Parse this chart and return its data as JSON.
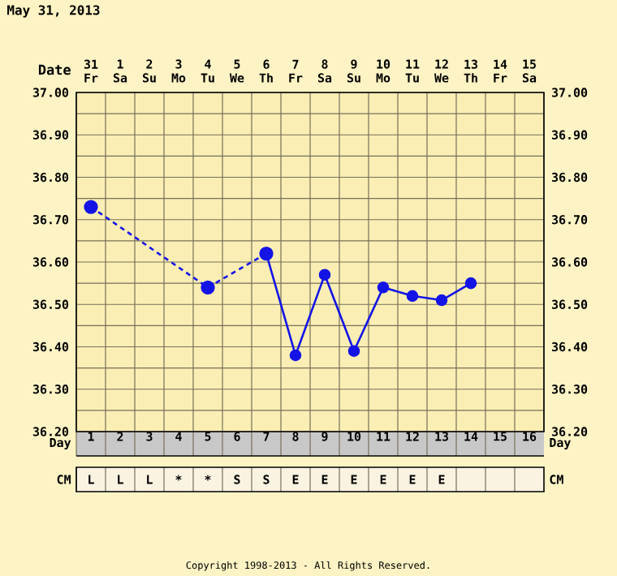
{
  "chart_data": {
    "type": "line",
    "title": "May 31, 2013",
    "xlabel": "Day",
    "xlim": [
      0.5,
      16.5
    ],
    "xticks": [
      1,
      2,
      3,
      4,
      5,
      6,
      7,
      8,
      9,
      10,
      11,
      12,
      13,
      14,
      15,
      16
    ],
    "ylim": [
      36.2,
      37.0
    ],
    "yticks": [
      {
        "value": 36.2,
        "label": "36.20"
      },
      {
        "value": 36.3,
        "label": "36.30"
      },
      {
        "value": 36.4,
        "label": "36.40"
      },
      {
        "value": 36.5,
        "label": "36.50"
      },
      {
        "value": 36.6,
        "label": "36.60"
      },
      {
        "value": 36.7,
        "label": "36.70"
      },
      {
        "value": 36.8,
        "label": "36.80"
      },
      {
        "value": 36.9,
        "label": "36.90"
      },
      {
        "value": 37.0,
        "label": "37.00"
      }
    ],
    "y2lim": [
      36.2,
      37.0
    ],
    "y2ticks": [
      {
        "value": 36.2,
        "label": "36.20"
      },
      {
        "value": 36.3,
        "label": "36.30"
      },
      {
        "value": 36.4,
        "label": "36.40"
      },
      {
        "value": 36.5,
        "label": "36.50"
      },
      {
        "value": 36.6,
        "label": "36.60"
      },
      {
        "value": 36.7,
        "label": "36.70"
      },
      {
        "value": 36.8,
        "label": "36.80"
      },
      {
        "value": 36.9,
        "label": "36.90"
      },
      {
        "value": 37.0,
        "label": "37.00"
      }
    ],
    "grid": true,
    "marker": "circle",
    "series": [
      {
        "color": "#1414e6",
        "line_style": "dashed",
        "x": [
          1,
          5,
          7
        ],
        "values": [
          36.73,
          36.54,
          36.62
        ]
      },
      {
        "color": "#1414e6",
        "line_style": "solid",
        "x": [
          7,
          8,
          9,
          10,
          11,
          12,
          13,
          14
        ],
        "values": [
          36.62,
          36.38,
          36.57,
          36.39,
          36.54,
          36.52,
          36.51,
          36.55
        ]
      }
    ],
    "annotations": [
      "Date",
      "31 Fr",
      "1 Sa",
      "2 Su",
      "3 Mo",
      "4 Tu",
      "5 We",
      "6 Th",
      "7 Fr",
      "8 Sa",
      "9 Su",
      "10 Mo",
      "11 Tu",
      "12 We",
      "13 Th",
      "14 Fr",
      "15 Sa",
      "CM",
      "L",
      "L",
      "L",
      "*",
      "*",
      "S",
      "S",
      "E",
      "E",
      "E",
      "E",
      "E",
      "E",
      "Copyright 1998-2013 - All Rights Reserved."
    ]
  }
}
